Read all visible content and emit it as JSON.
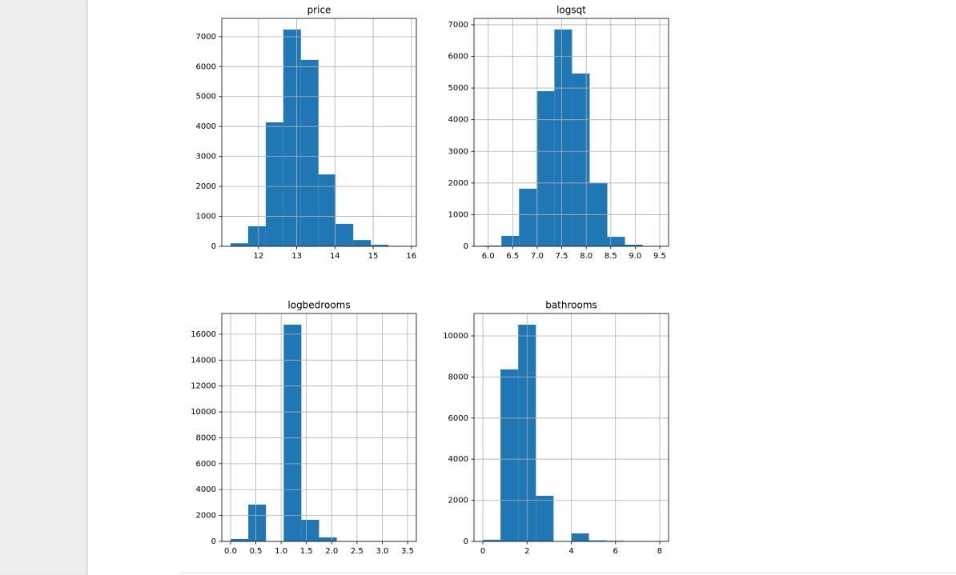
{
  "chart_data": [
    {
      "type": "histogram",
      "title": "price",
      "bins": [
        11.27,
        11.73,
        12.19,
        12.65,
        13.11,
        13.57,
        14.02,
        14.48,
        14.94,
        15.4,
        15.86
      ],
      "values": [
        100,
        670,
        4140,
        7240,
        6225,
        2400,
        750,
        210,
        50,
        10
      ],
      "color": "#1f77b4",
      "xlim": [
        11.04,
        16.13
      ],
      "ylim": [
        0,
        7610
      ],
      "xticks": [
        12,
        13,
        14,
        15,
        16
      ],
      "yticks": [
        0,
        1000,
        2000,
        3000,
        4000,
        5000,
        6000,
        7000
      ],
      "grid": true
    },
    {
      "type": "histogram",
      "title": "logsqt",
      "bins": [
        5.91,
        6.27,
        6.63,
        6.99,
        7.35,
        7.71,
        8.07,
        8.43,
        8.79,
        9.15,
        9.51
      ],
      "values": [
        20,
        330,
        1820,
        4900,
        6850,
        5460,
        2000,
        300,
        50,
        5
      ],
      "color": "#1f77b4",
      "xlim": [
        5.71,
        9.68
      ],
      "ylim": [
        0,
        7200
      ],
      "xticks": [
        {
          "value": 6,
          "label": "6.0"
        },
        6.5,
        {
          "value": 7,
          "label": "7.0"
        },
        7.5,
        {
          "value": 8,
          "label": "8.0"
        },
        8.5,
        {
          "value": 9,
          "label": "9.0"
        },
        9.5
      ],
      "yticks": [
        0,
        1000,
        2000,
        3000,
        4000,
        5000,
        6000,
        7000
      ],
      "grid": true
    },
    {
      "type": "histogram",
      "title": "logbedrooms",
      "bins": [
        0,
        0.35,
        0.7,
        1.05,
        1.4,
        1.75,
        2.1,
        2.45,
        2.8,
        3.15,
        3.5
      ],
      "values": [
        190,
        2840,
        0,
        16740,
        1670,
        310,
        10,
        0,
        0,
        1
      ],
      "color": "#1f77b4",
      "xlim": [
        -0.174,
        3.674
      ],
      "ylim": [
        0,
        17600
      ],
      "xticks": [
        {
          "value": 0,
          "label": "0.0"
        },
        0.5,
        {
          "value": 1,
          "label": "1.0"
        },
        1.5,
        {
          "value": 2,
          "label": "2.0"
        },
        2.5,
        {
          "value": 3,
          "label": "3.0"
        },
        3.5
      ],
      "yticks": [
        0,
        2000,
        4000,
        6000,
        8000,
        10000,
        12000,
        14000,
        16000
      ],
      "grid": true
    },
    {
      "type": "histogram",
      "title": "bathrooms",
      "bins": [
        0,
        0.8,
        1.6,
        2.4,
        3.2,
        4.0,
        4.8,
        5.6,
        6.4,
        7.2,
        8.0
      ],
      "values": [
        80,
        8370,
        10545,
        2220,
        0,
        390,
        50,
        30,
        0,
        5
      ],
      "color": "#1f77b4",
      "xlim": [
        -0.4,
        8.4
      ],
      "ylim": [
        0,
        11090
      ],
      "xticks": [
        0,
        2,
        4,
        6,
        8
      ],
      "yticks": [
        0,
        2000,
        4000,
        6000,
        8000,
        10000
      ],
      "grid": true
    }
  ]
}
